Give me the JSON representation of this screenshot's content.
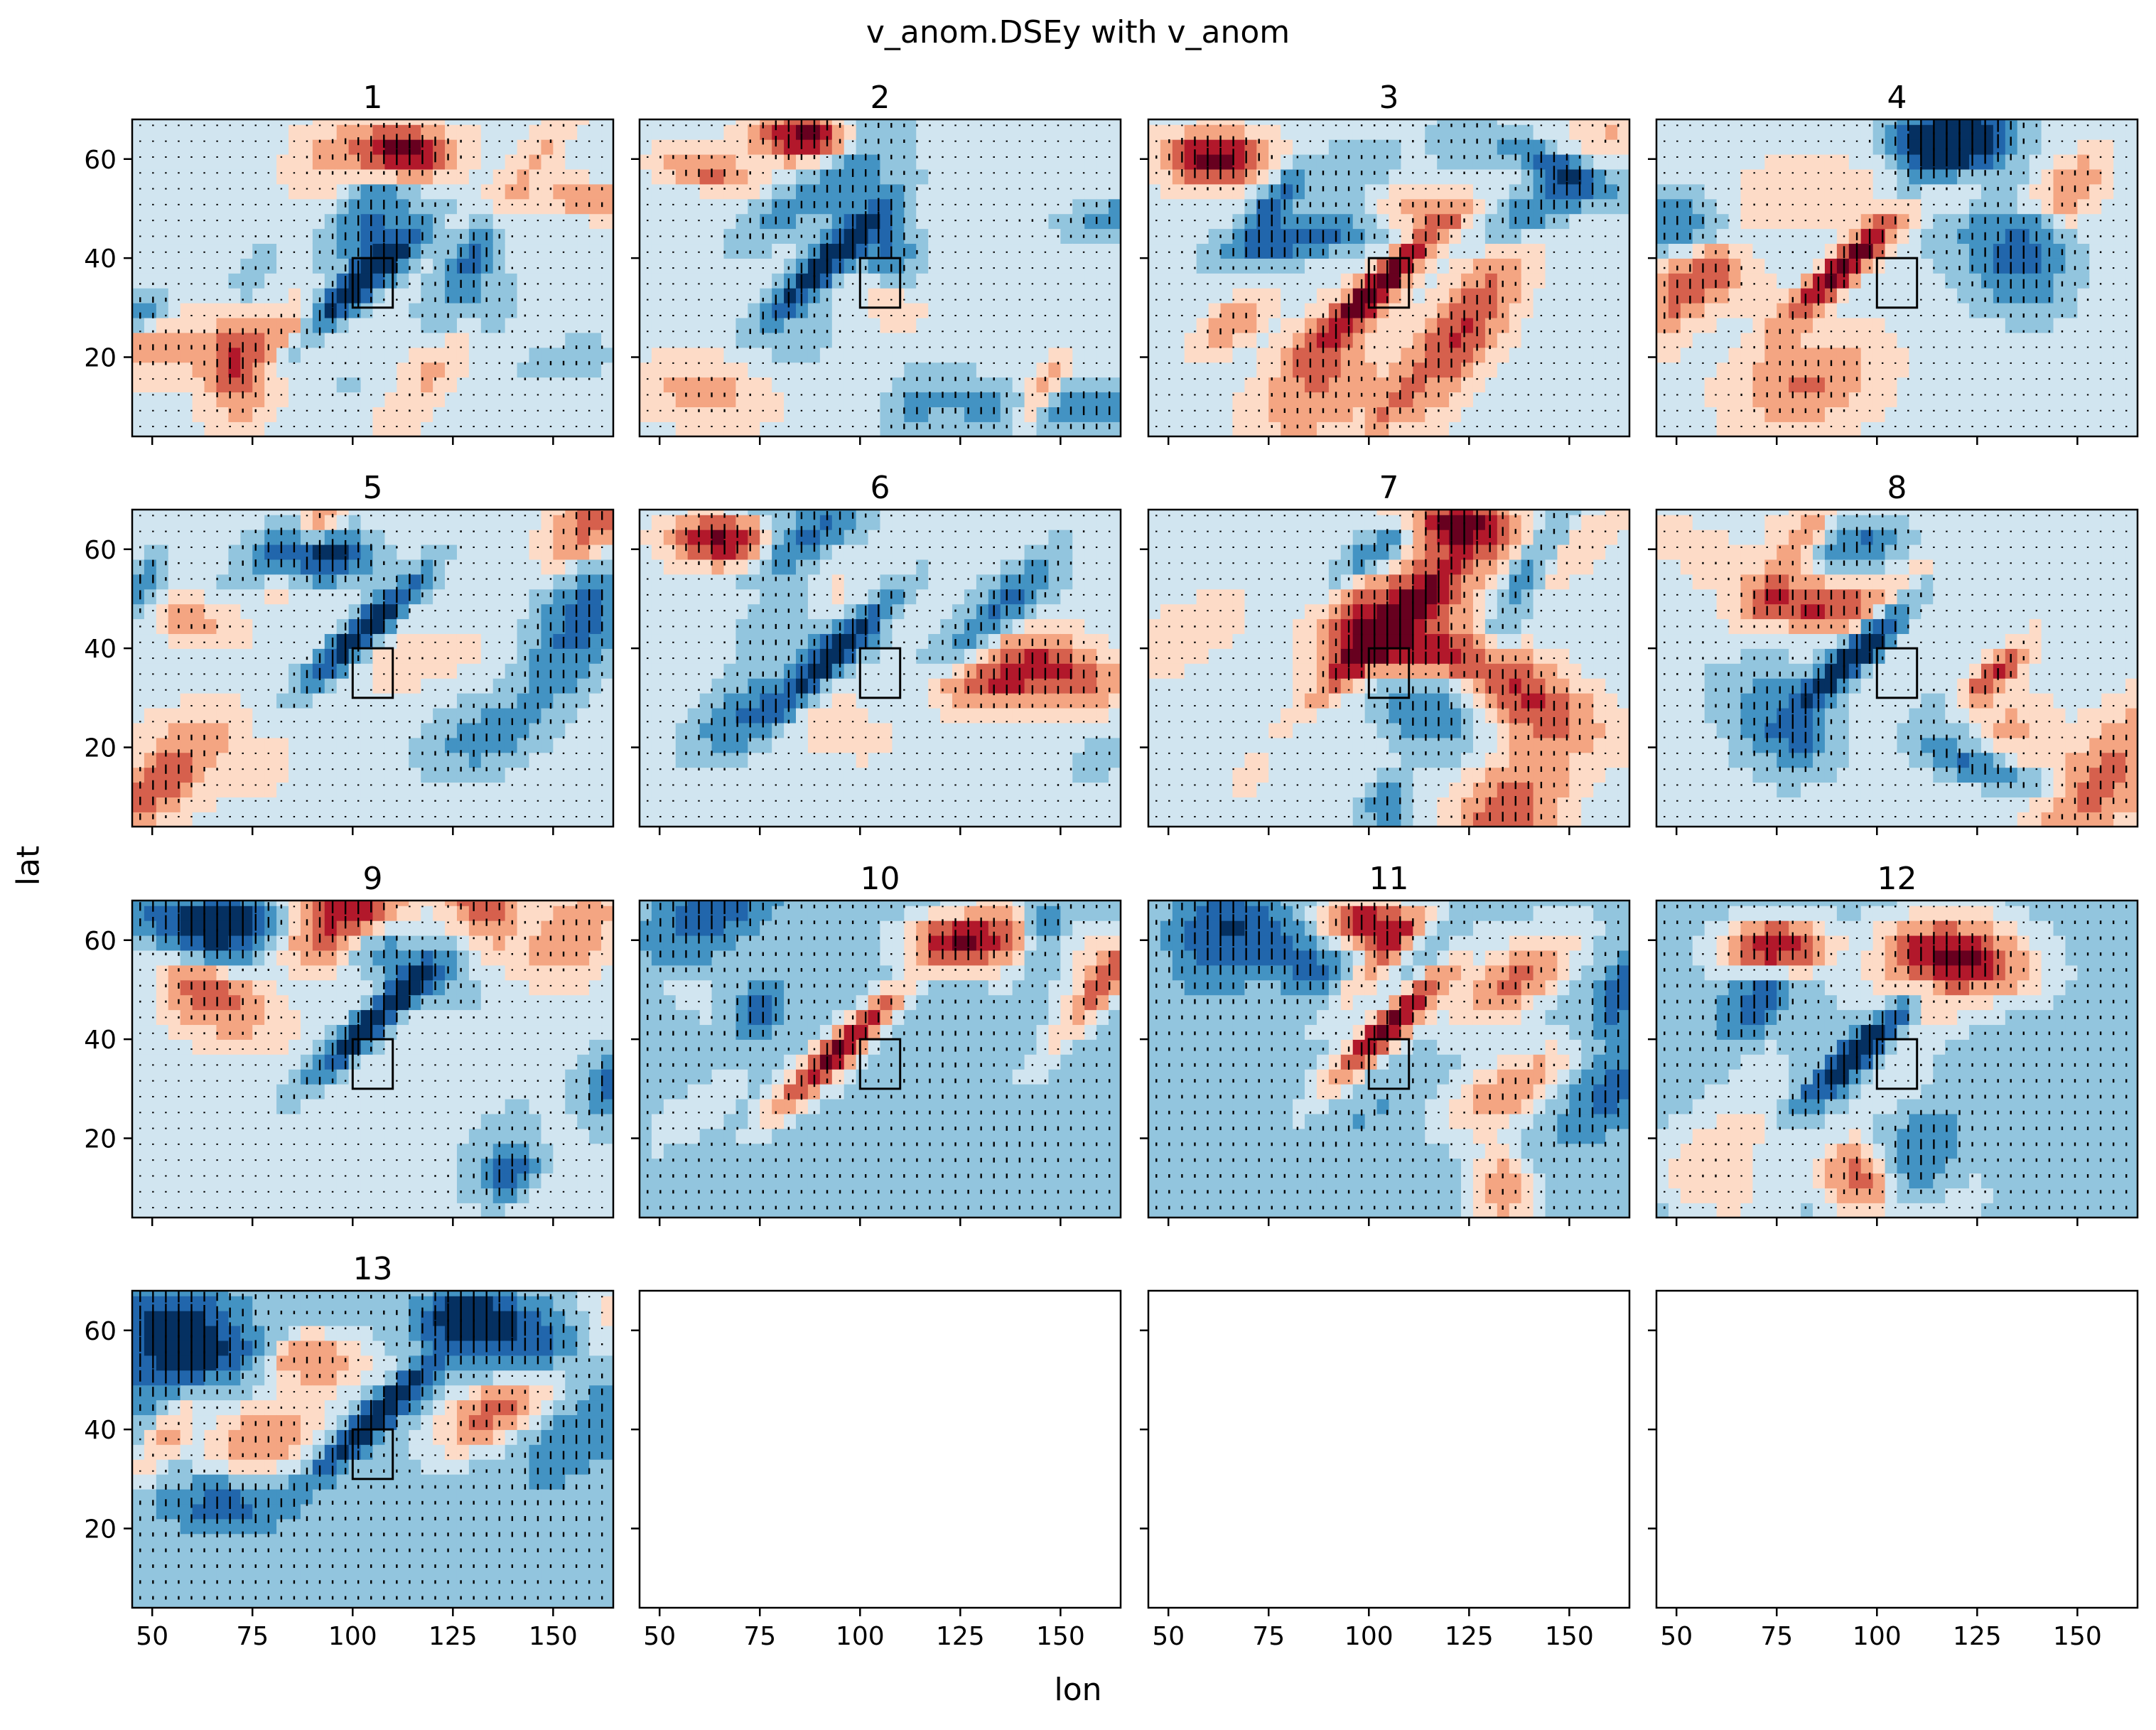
{
  "figure": {
    "suptitle": "v_anom.DSEy with v_anom",
    "xlabel": "lon",
    "ylabel": "lat"
  },
  "colors": {
    "neg5": "#053061",
    "neg4": "#2166ac",
    "neg3": "#4393c3",
    "neg2": "#92c5de",
    "neg1": "#d1e5f0",
    "pos1": "#fddbc7",
    "pos2": "#f4a582",
    "pos3": "#d6604d",
    "pos4": "#b2182b",
    "pos5": "#67001f",
    "box": "#000000",
    "quiver": "#000000"
  },
  "chart_data": {
    "type": "heatmap",
    "layout": "4x4 grid of contour maps with quiver arrows",
    "panels": [
      {
        "title": "1"
      },
      {
        "title": "2"
      },
      {
        "title": "3"
      },
      {
        "title": "4"
      },
      {
        "title": "5"
      },
      {
        "title": "6"
      },
      {
        "title": "7"
      },
      {
        "title": "8"
      },
      {
        "title": "9"
      },
      {
        "title": "10"
      },
      {
        "title": "11"
      },
      {
        "title": "12"
      },
      {
        "title": "13"
      },
      {
        "title": ""
      },
      {
        "title": ""
      },
      {
        "title": ""
      }
    ],
    "xlim": [
      45,
      165
    ],
    "ylim": [
      4,
      68
    ],
    "xticks": [
      50,
      75,
      100,
      125,
      150
    ],
    "yticks": [
      20,
      40,
      60
    ],
    "shared_x": true,
    "shared_y": true,
    "highlight_box": {
      "lon": [
        100,
        110
      ],
      "lat": [
        30,
        40
      ]
    },
    "grid": false
  }
}
